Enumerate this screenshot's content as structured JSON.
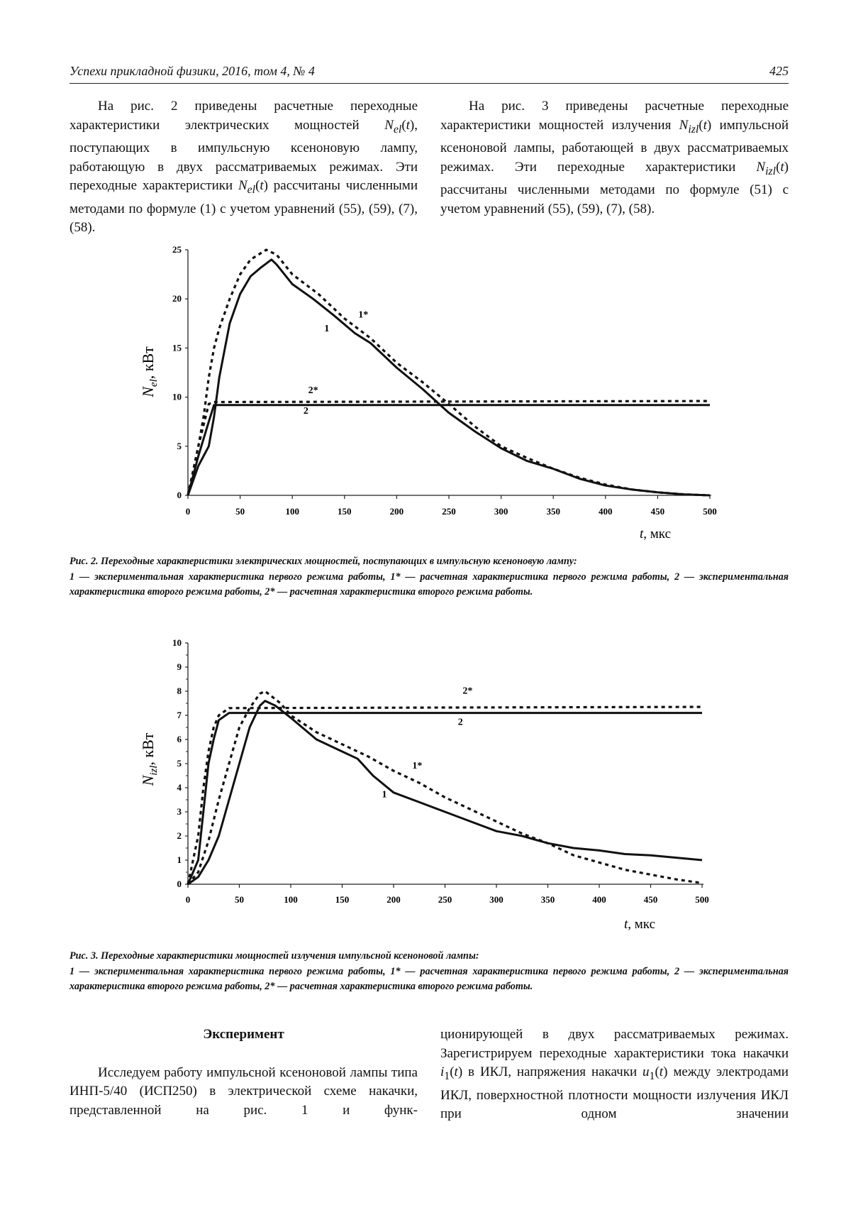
{
  "header": {
    "journal": "Успехи прикладной физики, 2016, том 4, № 4",
    "page_number": "425"
  },
  "intro": {
    "left": [
      "На рис. 2 приведены расчетные переходные характеристики электрических мощностей ",
      "N",
      "el",
      "(",
      "t",
      "), поступающих в импульсную ксеноновую лампу, работающую в  двух рассматриваемых режимах. Эти переходные характеристики ",
      "N",
      "el",
      "(",
      "t",
      ") рассчитаны численными методами по формуле (1) с учетом уравнений (55), (59), (7), (58)."
    ],
    "right": [
      "На рис. 3 приведены расчетные переходные характеристики мощностей излучения ",
      "N",
      "izl",
      "(",
      "t",
      ") им­пульсной ксеноновой лампы, работающей в двух рассматриваемых режимах. Эти переходные ха­рактеристики ",
      "N",
      "izl",
      "(",
      "t",
      ") рассчитаны численными мето­дами по формуле (51) с учетом уравнений (55), (59), (7), (58)."
    ]
  },
  "figure2": {
    "caption_title": "Рис. 2. Переходные характеристики электрических мощностей, поступающих в импульсную ксеноновую лампу:",
    "caption_legend": "1 — экспериментальная характеристика первого режима работы, 1* — расчетная характеристика первого режима ра­боты, 2 — экспериментальная характеристика второго режима работы, 2* — расчетная характеристика второго ре­жима работы."
  },
  "figure3": {
    "caption_title": "Рис. 3. Переходные характеристики мощностей излучения импульсной ксеноновой лампы:",
    "caption_legend": "1 — экспериментальная характеристика первого режима работы, 1* — расчетная характеристика первого режима ра­боты, 2 — экспериментальная характеристика второго режима работы, 2* — расчетная характеристика второго ре­жима работы."
  },
  "section": {
    "heading": "Эксперимент",
    "left": "Исследуем работу импульсной ксеноновой лампы типа ИНП-5/40 (ИСП250) в электрической схеме накачки, представленной на рис. 1 и функ-",
    "right": [
      "ционирующей в двух рассматриваемых режимах. Зарегистрируем переходные характеристики тока накачки ",
      "i",
      "1",
      "(",
      "t",
      ") в ИКЛ, напряжения накачки ",
      "u",
      "1",
      "(",
      "t",
      ") меж­ду электродами ИКЛ, поверхностной плотности мощности излучения ИКЛ при одном значении"
    ]
  },
  "chart_data": [
    {
      "type": "line",
      "xlabel_var": "t",
      "xlabel_unit": ", мкс",
      "ylabel_var": "N",
      "ylabel_sub": "el",
      "ylabel_unit": ", кВт",
      "xlim": [
        0,
        500
      ],
      "ylim": [
        0,
        25
      ],
      "xticks": [
        0,
        50,
        100,
        150,
        200,
        250,
        300,
        350,
        400,
        450,
        500
      ],
      "yticks": [
        0,
        5,
        10,
        15,
        20,
        25
      ],
      "grid": false,
      "series": [
        {
          "name": "1",
          "style": "solid",
          "label_at": [
            133,
            16.7
          ],
          "x": [
            0,
            10,
            20,
            25,
            30,
            40,
            50,
            60,
            70,
            80,
            85,
            100,
            120,
            140,
            160,
            175,
            200,
            225,
            250,
            275,
            300,
            325,
            350,
            375,
            400,
            425,
            450,
            475,
            500
          ],
          "y": [
            0,
            3,
            5,
            8,
            12,
            17.5,
            20.5,
            22.3,
            23.2,
            24,
            23.5,
            21.5,
            20,
            18.3,
            16.5,
            15.5,
            13,
            10.8,
            8.4,
            6.5,
            4.8,
            3.5,
            2.7,
            1.7,
            1,
            0.6,
            0.3,
            0.1,
            0
          ]
        },
        {
          "name": "1*",
          "style": "dashed",
          "label_at": [
            168,
            18.1
          ],
          "x": [
            0,
            10,
            15,
            20,
            25,
            30,
            40,
            50,
            60,
            75,
            85,
            100,
            125,
            150,
            175,
            200,
            225,
            250,
            275,
            300,
            325,
            350,
            375,
            400,
            425,
            450,
            475,
            500
          ],
          "y": [
            0,
            5,
            8,
            12,
            15,
            17,
            20,
            22.5,
            24,
            25,
            24.5,
            22.5,
            20.5,
            18,
            16,
            13.5,
            11.5,
            9.3,
            7,
            5,
            3.8,
            2.7,
            1.8,
            1.1,
            0.6,
            0.3,
            0.1,
            0
          ]
        },
        {
          "name": "2",
          "style": "solid",
          "label_at": [
            113,
            8.3
          ],
          "x": [
            0,
            10,
            20,
            25,
            30,
            500
          ],
          "y": [
            0,
            4,
            7.5,
            9.2,
            9.2,
            9.2
          ]
        },
        {
          "name": "2*",
          "style": "dashed",
          "label_at": [
            120,
            10.4
          ],
          "x": [
            0,
            10,
            20,
            25,
            500
          ],
          "y": [
            0,
            5,
            9.3,
            9.5,
            9.6
          ]
        }
      ]
    },
    {
      "type": "line",
      "xlabel_var": "t",
      "xlabel_unit": ", мкс",
      "ylabel_var": "N",
      "ylabel_sub": "izl",
      "ylabel_unit": ", кВт",
      "xlim": [
        0,
        500
      ],
      "ylim": [
        0,
        10
      ],
      "xticks": [
        0,
        50,
        100,
        150,
        200,
        250,
        300,
        350,
        400,
        450,
        500
      ],
      "yticks": [
        0,
        1,
        2,
        3,
        4,
        5,
        6,
        7,
        8,
        9,
        10
      ],
      "grid": false,
      "series": [
        {
          "name": "1",
          "style": "solid",
          "label_at": [
            191,
            3.6
          ],
          "x": [
            0,
            10,
            20,
            30,
            40,
            50,
            60,
            70,
            75,
            85,
            100,
            125,
            150,
            165,
            180,
            200,
            225,
            250,
            275,
            300,
            325,
            350,
            375,
            400,
            425,
            450,
            475,
            500
          ],
          "y": [
            0,
            0.3,
            1,
            2,
            3.5,
            5,
            6.5,
            7.4,
            7.6,
            7.4,
            6.9,
            6,
            5.5,
            5.2,
            4.5,
            3.8,
            3.4,
            3,
            2.6,
            2.2,
            2,
            1.7,
            1.5,
            1.4,
            1.25,
            1.2,
            1.1,
            1
          ]
        },
        {
          "name": "1*",
          "style": "dashed",
          "label_at": [
            223,
            4.8
          ],
          "x": [
            0,
            10,
            20,
            30,
            40,
            50,
            60,
            70,
            75,
            90,
            100,
            125,
            150,
            175,
            200,
            225,
            250,
            275,
            300,
            325,
            350,
            375,
            400,
            425,
            450,
            475,
            500
          ],
          "y": [
            0,
            0.5,
            1.8,
            3.5,
            5,
            6.5,
            7.3,
            7.9,
            8,
            7.5,
            7,
            6.3,
            5.8,
            5.3,
            4.7,
            4.2,
            3.6,
            3.1,
            2.6,
            2.1,
            1.7,
            1.2,
            0.9,
            0.6,
            0.4,
            0.2,
            0.05
          ]
        },
        {
          "name": "2",
          "style": "solid",
          "label_at": [
            265,
            6.6
          ],
          "x": [
            0,
            10,
            15,
            20,
            25,
            30,
            40,
            500
          ],
          "y": [
            0,
            1,
            3,
            5,
            6,
            6.8,
            7.1,
            7.1
          ]
        },
        {
          "name": "2*",
          "style": "dashed",
          "label_at": [
            272,
            7.9
          ],
          "x": [
            0,
            10,
            15,
            20,
            25,
            30,
            40,
            500
          ],
          "y": [
            0,
            2,
            4,
            5.5,
            6.5,
            7,
            7.3,
            7.35
          ]
        }
      ]
    }
  ]
}
